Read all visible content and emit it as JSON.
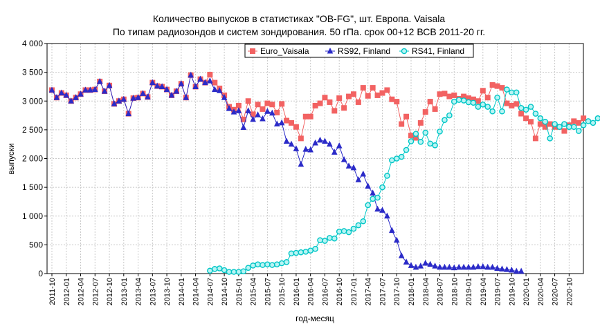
{
  "chart_data": {
    "type": "line",
    "title_line1": "Количество выпусков в статистиках \"OB-FG\", шт. Европа. Vaisala",
    "title_line2": "По типам радиозондов и систем зондирования. 50 гПа. срок 00+12 ВСВ 2011-20 гг.",
    "xlabel": "год-месяц",
    "ylabel": "выпуски",
    "ylim": [
      0,
      4000
    ],
    "yticks": [
      0,
      500,
      1000,
      1500,
      2000,
      2500,
      3000,
      3500,
      4000
    ],
    "ytick_labels": [
      "0",
      "500",
      "1 000",
      "1 500",
      "2 000",
      "2 500",
      "3 000",
      "3 500",
      "4 000"
    ],
    "x_start": "2011-10",
    "x_count": 111,
    "x_tick_labels": [
      "2011-10",
      "2012-01",
      "2012-04",
      "2012-07",
      "2012-10",
      "2013-01",
      "2013-04",
      "2013-07",
      "2013-10",
      "2014-01",
      "2014-04",
      "2014-07",
      "2014-10",
      "2015-01",
      "2015-04",
      "2015-07",
      "2015-10",
      "2016-01",
      "2016-04",
      "2016-07",
      "2016-10",
      "2017-01",
      "2017-04",
      "2017-07",
      "2017-10",
      "2018-01",
      "2018-04",
      "2018-07",
      "2018-10",
      "2019-01",
      "2019-04",
      "2019-07",
      "2019-10",
      "2020-01",
      "2020-04",
      "2020-07",
      "2020-10"
    ],
    "grid": true,
    "legend_position": "top-right",
    "series": [
      {
        "name": "Euro_Vaisala",
        "color": "#F26262",
        "marker": "square",
        "start": "2011-10",
        "values": [
          3190,
          3060,
          3140,
          3100,
          3000,
          3060,
          3120,
          3190,
          3190,
          3200,
          3340,
          3170,
          3270,
          2950,
          3000,
          3030,
          2780,
          3050,
          3060,
          3130,
          3070,
          3320,
          3260,
          3250,
          3200,
          3100,
          3170,
          3300,
          3060,
          3450,
          3250,
          3380,
          3320,
          3460,
          3320,
          3220,
          3100,
          2900,
          2850,
          2920,
          2680,
          3000,
          2770,
          2940,
          2860,
          2960,
          2940,
          2800,
          2950,
          2660,
          2620,
          2550,
          2350,
          2730,
          2730,
          2920,
          2960,
          3060,
          2980,
          2830,
          3050,
          2880,
          3080,
          3120,
          2980,
          3230,
          3090,
          3230,
          3100,
          3140,
          3190,
          3030,
          2990,
          2600,
          2730,
          2400,
          2360,
          2620,
          2810,
          2990,
          2860,
          3120,
          3130,
          3080,
          3100,
          3040,
          3080,
          3050,
          3030,
          3000,
          3180,
          3060,
          3280,
          3260,
          3230,
          2960,
          2920,
          2950,
          2780,
          2700,
          2640,
          2350,
          2600,
          2550,
          2600,
          2550,
          2550,
          2480,
          2580,
          2650,
          2620,
          2700
        ]
      },
      {
        "name": "RS92, Finland",
        "color": "#2B2BC8",
        "marker": "triangle",
        "start": "2011-10",
        "values": [
          3190,
          3060,
          3140,
          3100,
          3000,
          3060,
          3120,
          3190,
          3190,
          3200,
          3340,
          3170,
          3270,
          2950,
          3000,
          3030,
          2780,
          3050,
          3060,
          3130,
          3070,
          3320,
          3260,
          3250,
          3200,
          3100,
          3170,
          3300,
          3060,
          3450,
          3250,
          3380,
          3320,
          3350,
          3200,
          3180,
          3060,
          2870,
          2810,
          2830,
          2540,
          2830,
          2680,
          2760,
          2690,
          2820,
          2790,
          2600,
          2620,
          2300,
          2250,
          2170,
          1900,
          2160,
          2150,
          2270,
          2320,
          2300,
          2250,
          2110,
          2220,
          1980,
          1870,
          1840,
          1630,
          1730,
          1520,
          1400,
          1120,
          1100,
          1000,
          750,
          580,
          310,
          200,
          140,
          110,
          130,
          180,
          160,
          130,
          110,
          110,
          110,
          100,
          110,
          110,
          110,
          110,
          120,
          120,
          110,
          110,
          90,
          80,
          70,
          60,
          40,
          40
        ]
      },
      {
        "name": "RS41, Finland",
        "color": "#00C6C6",
        "marker": "circle",
        "start": "2014-07",
        "values": [
          50,
          80,
          90,
          60,
          30,
          30,
          30,
          40,
          100,
          140,
          160,
          150,
          160,
          150,
          160,
          180,
          200,
          350,
          360,
          370,
          380,
          400,
          430,
          580,
          570,
          620,
          610,
          730,
          740,
          720,
          780,
          840,
          910,
          1190,
          1300,
          1320,
          1500,
          1700,
          1970,
          2000,
          2030,
          2150,
          2300,
          2430,
          2290,
          2450,
          2260,
          2230,
          2470,
          2670,
          2750,
          2990,
          3020,
          3010,
          2980,
          2970,
          2900,
          2940,
          2900,
          2820,
          3060,
          2820,
          3200,
          3150,
          3150,
          2880,
          2850,
          2900,
          2780,
          2700,
          2640,
          2350,
          2600,
          2550,
          2600,
          2550,
          2550,
          2480,
          2580,
          2650,
          2620,
          2700
        ]
      }
    ]
  }
}
